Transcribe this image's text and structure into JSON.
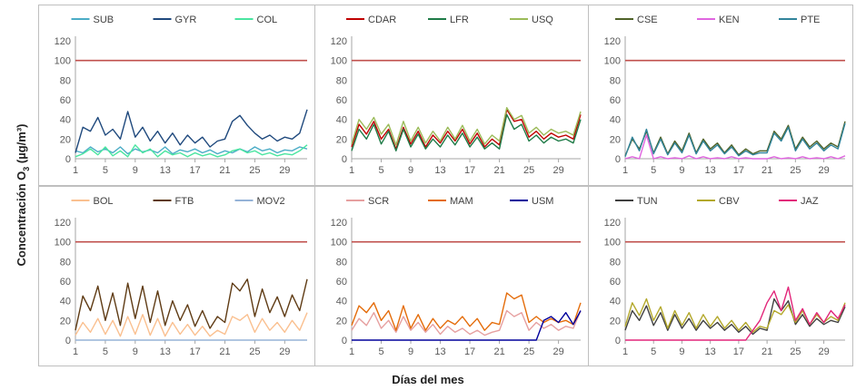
{
  "ylabel": {
    "main": "Concentración O",
    "sub": "3",
    "unit": " (µg/m³)"
  },
  "xlabel": "Días del mes",
  "chart_data": [
    {
      "type": "line",
      "ylim": [
        0,
        120
      ],
      "yticks": [
        0,
        20,
        40,
        60,
        80,
        100,
        120
      ],
      "xticks": [
        1,
        5,
        9,
        13,
        17,
        21,
        25,
        29
      ],
      "xlim": [
        1,
        32
      ],
      "reference": 100,
      "series": [
        {
          "name": "SUB",
          "color": "#4bacc6",
          "values": [
            8,
            6,
            12,
            7,
            10,
            6,
            12,
            5,
            10,
            7,
            9,
            6,
            12,
            5,
            9,
            7,
            10,
            6,
            9,
            5,
            8,
            6,
            10,
            7,
            12,
            8,
            10,
            6,
            9,
            8,
            12,
            10
          ]
        },
        {
          "name": "GYR",
          "color": "#1f497d",
          "values": [
            6,
            32,
            28,
            42,
            24,
            30,
            20,
            48,
            22,
            32,
            18,
            28,
            16,
            26,
            14,
            24,
            16,
            22,
            12,
            18,
            20,
            38,
            44,
            34,
            26,
            20,
            24,
            18,
            22,
            20,
            26,
            50
          ]
        },
        {
          "name": "COL",
          "color": "#4ae5a0",
          "values": [
            2,
            5,
            10,
            4,
            12,
            3,
            8,
            2,
            14,
            6,
            10,
            2,
            8,
            4,
            6,
            2,
            6,
            3,
            5,
            2,
            4,
            8,
            10,
            6,
            8,
            4,
            6,
            3,
            5,
            4,
            8,
            14
          ]
        }
      ]
    },
    {
      "type": "line",
      "ylim": [
        0,
        120
      ],
      "yticks": [
        0,
        20,
        40,
        60,
        80,
        100,
        120
      ],
      "xticks": [
        1,
        5,
        9,
        13,
        17,
        21,
        25,
        29
      ],
      "xlim": [
        1,
        32
      ],
      "reference": 100,
      "series": [
        {
          "name": "CDAR",
          "color": "#c00000",
          "values": [
            12,
            35,
            25,
            38,
            20,
            30,
            10,
            32,
            15,
            28,
            12,
            24,
            16,
            28,
            18,
            30,
            15,
            26,
            12,
            20,
            14,
            50,
            38,
            40,
            22,
            28,
            20,
            26,
            22,
            24,
            20,
            45
          ]
        },
        {
          "name": "LFR",
          "color": "#1e7b47",
          "values": [
            8,
            30,
            20,
            35,
            15,
            28,
            8,
            30,
            12,
            25,
            10,
            20,
            12,
            24,
            14,
            26,
            12,
            22,
            10,
            16,
            10,
            45,
            30,
            35,
            18,
            24,
            16,
            22,
            18,
            20,
            16,
            40
          ]
        },
        {
          "name": "USQ",
          "color": "#9bbb59",
          "values": [
            15,
            40,
            30,
            42,
            25,
            35,
            14,
            38,
            18,
            32,
            16,
            28,
            18,
            32,
            20,
            34,
            18,
            30,
            15,
            24,
            18,
            52,
            40,
            44,
            26,
            32,
            24,
            30,
            26,
            28,
            24,
            48
          ]
        }
      ]
    },
    {
      "type": "line",
      "ylim": [
        0,
        120
      ],
      "yticks": [
        0,
        20,
        40,
        60,
        80,
        100,
        120
      ],
      "xticks": [
        1,
        5,
        9,
        13,
        17,
        21,
        25,
        29
      ],
      "xlim": [
        1,
        32
      ],
      "reference": 100,
      "series": [
        {
          "name": "CSE",
          "color": "#4f6228",
          "values": [
            3,
            20,
            10,
            28,
            6,
            22,
            5,
            18,
            8,
            26,
            6,
            20,
            10,
            16,
            6,
            14,
            4,
            10,
            5,
            8,
            8,
            28,
            20,
            34,
            10,
            22,
            12,
            18,
            10,
            16,
            12,
            38
          ]
        },
        {
          "name": "KEN",
          "color": "#e066e0",
          "values": [
            0,
            2,
            0,
            24,
            0,
            2,
            0,
            1,
            0,
            3,
            0,
            2,
            0,
            1,
            0,
            2,
            0,
            1,
            0,
            0,
            0,
            2,
            0,
            1,
            0,
            2,
            0,
            1,
            0,
            2,
            0,
            3
          ]
        },
        {
          "name": "PTE",
          "color": "#31849b",
          "values": [
            2,
            22,
            8,
            30,
            5,
            20,
            4,
            16,
            6,
            24,
            5,
            18,
            8,
            14,
            5,
            12,
            3,
            8,
            4,
            6,
            6,
            26,
            18,
            32,
            8,
            20,
            10,
            16,
            8,
            14,
            10,
            36
          ]
        }
      ]
    },
    {
      "type": "line",
      "ylim": [
        0,
        120
      ],
      "yticks": [
        0,
        20,
        40,
        60,
        80,
        100,
        120
      ],
      "xticks": [
        1,
        5,
        9,
        13,
        17,
        21,
        25,
        29
      ],
      "xlim": [
        1,
        32
      ],
      "reference": 100,
      "series": [
        {
          "name": "BOL",
          "color": "#fac090",
          "values": [
            5,
            18,
            8,
            22,
            6,
            20,
            4,
            24,
            6,
            26,
            5,
            22,
            4,
            18,
            6,
            16,
            5,
            14,
            4,
            10,
            6,
            24,
            20,
            26,
            8,
            22,
            10,
            18,
            8,
            20,
            10,
            28
          ]
        },
        {
          "name": "FTB",
          "color": "#5f3b14",
          "values": [
            10,
            45,
            30,
            55,
            20,
            48,
            15,
            58,
            22,
            55,
            18,
            50,
            15,
            40,
            20,
            36,
            14,
            30,
            12,
            24,
            18,
            58,
            50,
            62,
            24,
            52,
            28,
            44,
            24,
            46,
            30,
            62
          ]
        },
        {
          "name": "MOV2",
          "color": "#95b3d7",
          "values": [
            0,
            0,
            0,
            0,
            0,
            0,
            0,
            0,
            0,
            0,
            0,
            0,
            0,
            0,
            0,
            0,
            0,
            0,
            0,
            0,
            0,
            0,
            0,
            0,
            0,
            0,
            0,
            0,
            0,
            0,
            0,
            0
          ]
        }
      ]
    },
    {
      "type": "line",
      "ylim": [
        0,
        120
      ],
      "yticks": [
        0,
        20,
        40,
        60,
        80,
        100,
        120
      ],
      "xticks": [
        1,
        5,
        9,
        13,
        17,
        21,
        25,
        29
      ],
      "xlim": [
        1,
        32
      ],
      "reference": 100,
      "series": [
        {
          "name": "SCR",
          "color": "#e6a0a0",
          "values": [
            10,
            22,
            15,
            28,
            12,
            20,
            8,
            24,
            10,
            18,
            8,
            16,
            6,
            14,
            8,
            12,
            6,
            10,
            5,
            8,
            10,
            30,
            24,
            28,
            10,
            18,
            12,
            16,
            10,
            14,
            12,
            30
          ]
        },
        {
          "name": "MAM",
          "color": "#e46c0a",
          "values": [
            15,
            35,
            28,
            38,
            20,
            30,
            10,
            35,
            12,
            26,
            10,
            22,
            12,
            20,
            16,
            24,
            14,
            22,
            10,
            18,
            16,
            48,
            42,
            46,
            18,
            24,
            18,
            22,
            18,
            20,
            16,
            38
          ]
        },
        {
          "name": "USM",
          "color": "#00009c",
          "values": [
            0,
            0,
            0,
            0,
            0,
            0,
            0,
            0,
            0,
            0,
            0,
            0,
            0,
            0,
            0,
            0,
            0,
            0,
            0,
            0,
            0,
            0,
            0,
            0,
            0,
            0,
            20,
            24,
            18,
            28,
            16,
            30
          ]
        }
      ]
    },
    {
      "type": "line",
      "ylim": [
        0,
        120
      ],
      "yticks": [
        0,
        20,
        40,
        60,
        80,
        100,
        120
      ],
      "xticks": [
        1,
        5,
        9,
        13,
        17,
        21,
        25,
        29
      ],
      "xlim": [
        1,
        32
      ],
      "reference": 100,
      "series": [
        {
          "name": "TUN",
          "color": "#404040",
          "values": [
            10,
            30,
            20,
            35,
            15,
            28,
            10,
            26,
            12,
            22,
            10,
            20,
            12,
            18,
            10,
            16,
            8,
            14,
            6,
            12,
            10,
            42,
            30,
            40,
            16,
            26,
            14,
            22,
            16,
            20,
            18,
            34
          ]
        },
        {
          "name": "CBV",
          "color": "#b3a82b",
          "values": [
            14,
            38,
            25,
            42,
            20,
            34,
            12,
            30,
            15,
            28,
            12,
            26,
            14,
            24,
            12,
            20,
            10,
            18,
            8,
            14,
            12,
            30,
            26,
            36,
            18,
            30,
            16,
            26,
            18,
            24,
            20,
            38
          ]
        },
        {
          "name": "JAZ",
          "color": "#e2267a",
          "values": [
            0,
            0,
            0,
            0,
            0,
            0,
            0,
            0,
            0,
            0,
            0,
            0,
            0,
            0,
            0,
            0,
            0,
            0,
            10,
            20,
            38,
            50,
            30,
            54,
            20,
            32,
            16,
            28,
            18,
            30,
            22,
            36
          ]
        }
      ]
    }
  ]
}
